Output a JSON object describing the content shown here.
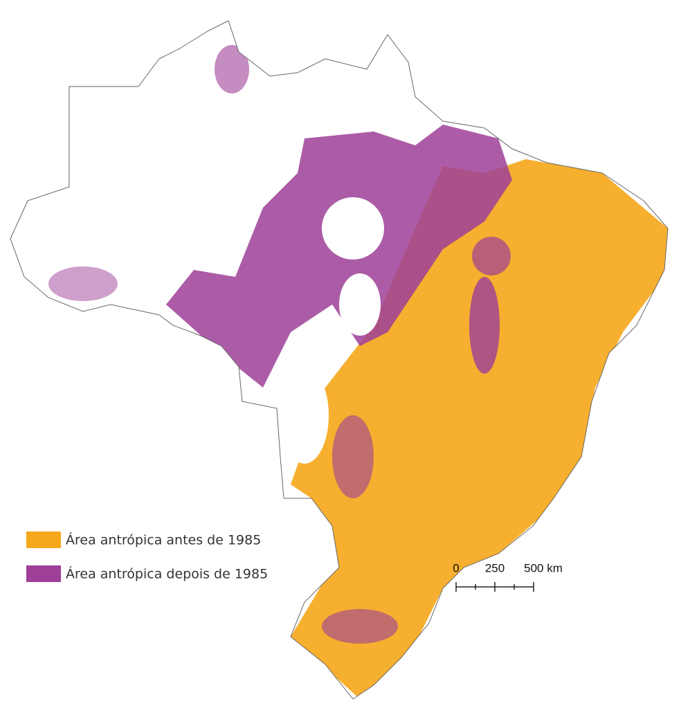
{
  "legend": [
    {
      "label": "Área antrópica antes de 1985",
      "color": "#f5a81c"
    },
    {
      "label": "Área antrópica depois de 1985",
      "color": "#9e3f98"
    }
  ],
  "scale_bar": {
    "labels": [
      "0",
      "250",
      "500 km"
    ]
  }
}
